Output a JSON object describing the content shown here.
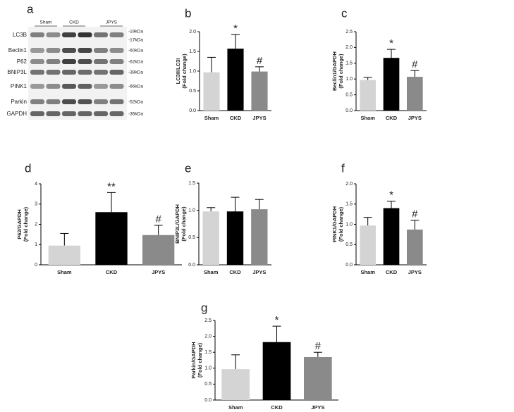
{
  "blot": {
    "panel": "a",
    "groups": [
      "Sham",
      "CKD",
      "JPYS"
    ],
    "proteins": [
      "LC3B",
      "Beclin1",
      "P62",
      "BNIP3L",
      "PINK1",
      "Parkin",
      "GAPDH"
    ],
    "sizes": [
      "-19kDa",
      "-17kDa",
      "-60kDa",
      "-62kDa",
      "-38kDa",
      "-66kDa",
      "-52kDa",
      "-36kDa"
    ]
  },
  "chart_data": [
    {
      "type": "bar",
      "panel": "b",
      "ylabel": [
        "LC3II/LC3I",
        "(Fold change)"
      ],
      "categories": [
        "Sham",
        "CKD",
        "JPYS"
      ],
      "values": [
        0.97,
        1.57,
        0.99
      ],
      "errors": [
        0.38,
        0.36,
        0.12
      ],
      "markers": [
        null,
        "*",
        "#"
      ],
      "colors": [
        "#d4d4d4",
        "#000000",
        "#8a8a8a"
      ],
      "ylim": [
        0,
        2.0
      ],
      "yticks": [
        {
          "value": 0,
          "label": "0.0"
        },
        0.5,
        {
          "value": 1,
          "label": "1.0"
        },
        1.5,
        {
          "value": 2,
          "label": "2.0"
        }
      ]
    },
    {
      "type": "bar",
      "panel": "c",
      "ylabel": [
        "Beclin1/GAPDH",
        "(Fold change)"
      ],
      "categories": [
        "Sham",
        "CKD",
        "JPYS"
      ],
      "values": [
        0.97,
        1.67,
        1.07
      ],
      "errors": [
        0.08,
        0.27,
        0.2
      ],
      "markers": [
        null,
        "*",
        "#"
      ],
      "colors": [
        "#d4d4d4",
        "#000000",
        "#8a8a8a"
      ],
      "ylim": [
        0,
        2.5
      ],
      "yticks": [
        {
          "value": 0,
          "label": "0.0"
        },
        0.5,
        {
          "value": 1,
          "label": "1.0"
        },
        1.5,
        {
          "value": 2,
          "label": "2.0"
        },
        2.5
      ]
    },
    {
      "type": "bar",
      "panel": "d",
      "ylabel": [
        "P62/GAPDH",
        "(Fold change)"
      ],
      "categories": [
        "Sham",
        "CKD",
        "JPYS"
      ],
      "values": [
        0.95,
        2.6,
        1.47
      ],
      "errors": [
        0.6,
        0.97,
        0.48
      ],
      "markers": [
        null,
        "**",
        "#"
      ],
      "colors": [
        "#d4d4d4",
        "#000000",
        "#8a8a8a"
      ],
      "ylim": [
        0,
        4
      ],
      "yticks": [
        0,
        1,
        2,
        3,
        4
      ]
    },
    {
      "type": "bar",
      "panel": "e",
      "ylabel": [
        "BNIP3L/GAPDH",
        "(Fold change)"
      ],
      "categories": [
        "Sham",
        "CKD",
        "JPYS"
      ],
      "values": [
        0.98,
        0.98,
        1.02
      ],
      "errors": [
        0.07,
        0.26,
        0.18
      ],
      "markers": [
        null,
        null,
        null
      ],
      "colors": [
        "#d4d4d4",
        "#000000",
        "#8a8a8a"
      ],
      "ylim": [
        0,
        1.5
      ],
      "yticks": [
        {
          "value": 0,
          "label": "0.0"
        },
        0.5,
        {
          "value": 1,
          "label": "1.0"
        },
        1.5
      ]
    },
    {
      "type": "bar",
      "panel": "f",
      "ylabel": [
        "PINK1/GAPDH",
        "(Fold change)"
      ],
      "categories": [
        "Sham",
        "CKD",
        "JPYS"
      ],
      "values": [
        0.97,
        1.4,
        0.87
      ],
      "errors": [
        0.2,
        0.17,
        0.23
      ],
      "markers": [
        null,
        "*",
        "#"
      ],
      "colors": [
        "#d4d4d4",
        "#000000",
        "#8a8a8a"
      ],
      "ylim": [
        0,
        2.0
      ],
      "yticks": [
        {
          "value": 0,
          "label": "0.0"
        },
        0.5,
        {
          "value": 1,
          "label": "1.0"
        },
        1.5,
        {
          "value": 2,
          "label": "2.0"
        }
      ]
    },
    {
      "type": "bar",
      "panel": "g",
      "ylabel": [
        "Parkin/GAPDH",
        "(Fold change)"
      ],
      "categories": [
        "Sham",
        "CKD",
        "JPYS"
      ],
      "values": [
        0.97,
        1.82,
        1.35
      ],
      "errors": [
        0.45,
        0.5,
        0.15
      ],
      "markers": [
        null,
        "*",
        "#"
      ],
      "colors": [
        "#d4d4d4",
        "#000000",
        "#8a8a8a"
      ],
      "ylim": [
        0,
        2.5
      ],
      "yticks": [
        {
          "value": 0,
          "label": "0.0"
        },
        0.5,
        {
          "value": 1,
          "label": "1.0"
        },
        1.5,
        {
          "value": 2,
          "label": "2.0"
        },
        2.5
      ]
    }
  ]
}
